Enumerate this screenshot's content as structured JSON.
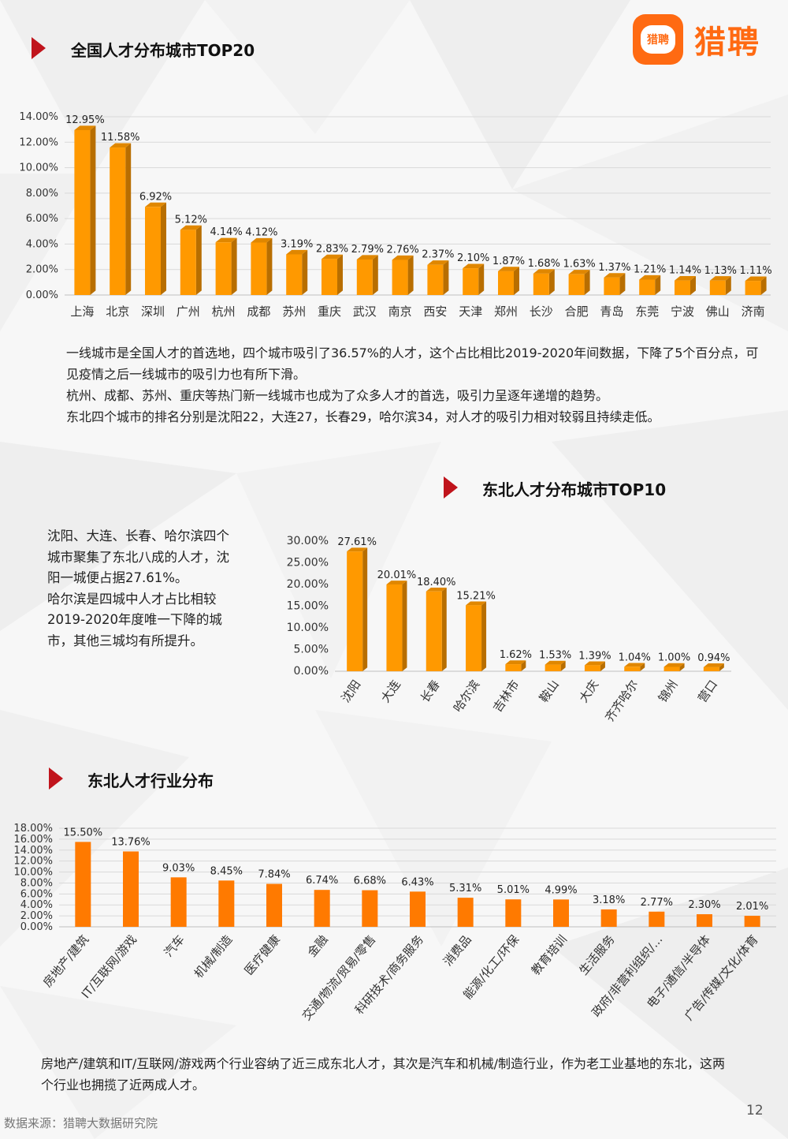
{
  "brand": {
    "logo_bubble_text": "猎聘",
    "logo_text": "猎聘",
    "accent": "#ff6a12"
  },
  "sections": {
    "top20_title": "全国人才分布城市TOP20",
    "ne_top10_title": "东北人才分布城市TOP10",
    "ne_industry_title": "东北人才行业分布"
  },
  "texts": {
    "top20_paragraphs": [
      "一线城市是全国人才的首选地，四个城市吸引了36.57%的人才，这个占比相比2019-2020年间数据，下降了5个百分点，可见疫情之后一线城市的吸引力也有所下滑。",
      "杭州、成都、苏州、重庆等热门新一线城市也成为了众多人才的首选，吸引力呈逐年递增的趋势。",
      "东北四个城市的排名分别是沈阳22，大连27，长春29，哈尔滨34，对人才的吸引力相对较弱且持续走低。"
    ],
    "ne_side_paragraphs": [
      "沈阳、大连、长春、哈尔滨四个城市聚集了东北八成的人才，沈阳一城便占据27.61%。",
      "哈尔滨是四城中人才占比相较2019-2020年度唯一下降的城市，其他三城均有所提升。"
    ],
    "industry_paragraph": "房地产/建筑和IT/互联网/游戏两个行业容纳了近三成东北人才，其次是汽车和机械/制造行业，作为老工业基地的东北，这两个行业也拥揽了近两成人才。"
  },
  "footer": {
    "source": "数据来源：猎聘大数据研究院",
    "page_number": "12"
  },
  "chart_data": [
    {
      "type": "bar",
      "title": "全国人才分布城市TOP20",
      "categories": [
        "上海",
        "北京",
        "深圳",
        "广州",
        "杭州",
        "成都",
        "苏州",
        "重庆",
        "武汉",
        "南京",
        "西安",
        "天津",
        "郑州",
        "长沙",
        "合肥",
        "青岛",
        "东莞",
        "宁波",
        "佛山",
        "济南"
      ],
      "values": [
        12.95,
        11.58,
        6.92,
        5.12,
        4.14,
        4.12,
        3.19,
        2.83,
        2.79,
        2.76,
        2.37,
        2.1,
        1.87,
        1.68,
        1.63,
        1.37,
        1.21,
        1.14,
        1.13,
        1.11
      ],
      "value_labels": [
        "12.95%",
        "11.58%",
        "6.92%",
        "5.12%",
        "4.14%",
        "4.12%",
        "3.19%",
        "2.83%",
        "2.79%",
        "2.76%",
        "2.37%",
        "2.10%",
        "1.87%",
        "1.68%",
        "1.63%",
        "1.37%",
        "1.21%",
        "1.14%",
        "1.13%",
        "1.11%"
      ],
      "ylim": [
        0,
        14
      ],
      "yticks": [
        "0.00%",
        "2.00%",
        "4.00%",
        "6.00%",
        "8.00%",
        "10.00%",
        "12.00%",
        "14.00%"
      ],
      "grid": true,
      "bar_style": "3d",
      "color": "#ff9900"
    },
    {
      "type": "bar",
      "title": "东北人才分布城市TOP10",
      "categories": [
        "沈阳",
        "大连",
        "长春",
        "哈尔滨",
        "吉林市",
        "鞍山",
        "大庆",
        "齐齐哈尔",
        "锦州",
        "营口"
      ],
      "values": [
        27.61,
        20.01,
        18.4,
        15.21,
        1.62,
        1.53,
        1.39,
        1.04,
        1.0,
        0.94
      ],
      "value_labels": [
        "27.61%",
        "20.01%",
        "18.40%",
        "15.21%",
        "1.62%",
        "1.53%",
        "1.39%",
        "1.04%",
        "1.00%",
        "0.94%"
      ],
      "ylim": [
        0,
        30
      ],
      "yticks": [
        "0.00%",
        "5.00%",
        "10.00%",
        "15.00%",
        "20.00%",
        "25.00%",
        "30.00%"
      ],
      "grid": false,
      "bar_style": "3d",
      "color": "#ff9900"
    },
    {
      "type": "bar",
      "title": "东北人才行业分布",
      "categories": [
        "房地产/建筑",
        "IT/互联网/游戏",
        "汽车",
        "机械/制造",
        "医疗健康",
        "金融",
        "交通/物流/贸易/零售",
        "科研技术/商务服务",
        "消费品",
        "能源/化工/环保",
        "教育培训",
        "生活服务",
        "政府/非营利组织/...",
        "电子/通信/半导体",
        "广告/传媒/文化/体育"
      ],
      "values": [
        15.5,
        13.76,
        9.03,
        8.45,
        7.84,
        6.74,
        6.68,
        6.43,
        5.31,
        5.01,
        4.99,
        3.18,
        2.77,
        2.3,
        2.01
      ],
      "value_labels": [
        "15.50%",
        "13.76%",
        "9.03%",
        "8.45%",
        "7.84%",
        "6.74%",
        "6.68%",
        "6.43%",
        "5.31%",
        "5.01%",
        "4.99%",
        "3.18%",
        "2.77%",
        "2.30%",
        "2.01%"
      ],
      "ylim": [
        0,
        18
      ],
      "yticks": [
        "0.00%",
        "2.00%",
        "4.00%",
        "6.00%",
        "8.00%",
        "10.00%",
        "12.00%",
        "14.00%",
        "16.00%",
        "18.00%"
      ],
      "grid": true,
      "bar_style": "flat",
      "color": "#ff7a00"
    }
  ]
}
